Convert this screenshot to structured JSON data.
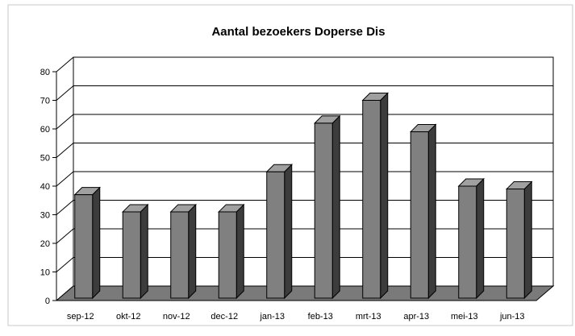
{
  "chart_data": {
    "type": "bar",
    "title": "Aantal bezoekers Doperse Dis",
    "categories": [
      "sep-12",
      "okt-12",
      "nov-12",
      "dec-12",
      "jan-13",
      "feb-13",
      "mrt-13",
      "apr-13",
      "mei-13",
      "jun-13"
    ],
    "values": [
      37,
      31,
      31,
      31,
      45,
      62,
      70,
      59,
      40,
      39
    ],
    "ylim": [
      0,
      80
    ],
    "yticks": [
      "0",
      "10",
      "20",
      "30",
      "40",
      "50",
      "60",
      "70",
      "80"
    ],
    "grid": true,
    "legend": "none",
    "bar_color": "#808080",
    "bar_top_color": "#a0a0a0",
    "bar_side_color": "#3c3c3c",
    "floor_color": "#7a7a7a"
  }
}
